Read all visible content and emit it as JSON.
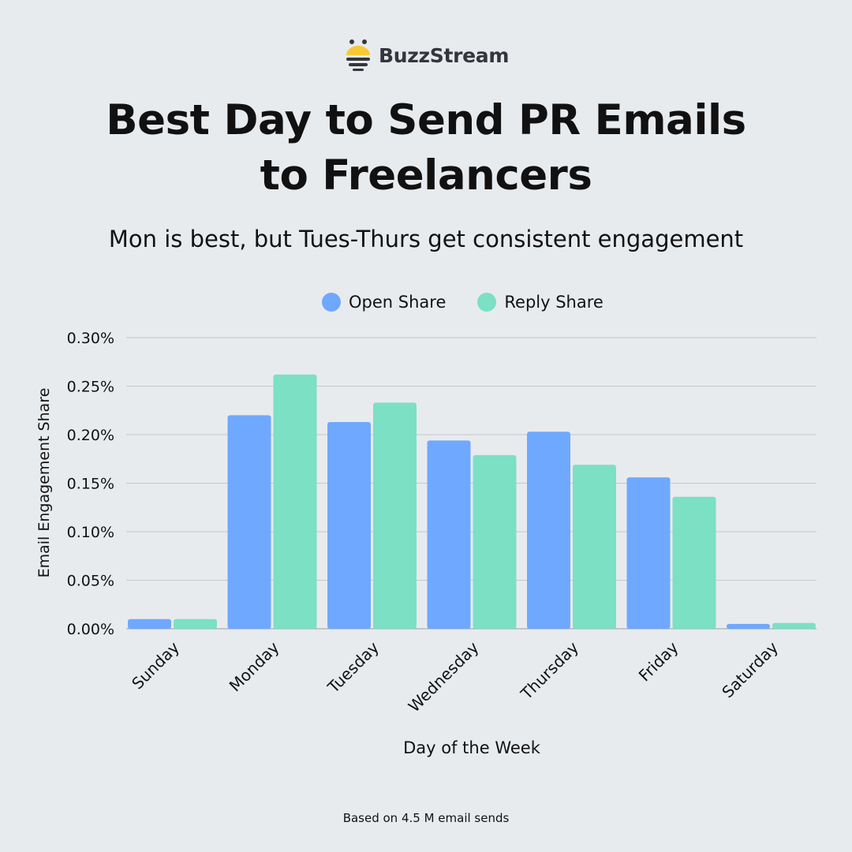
{
  "brand": {
    "name": "BuzzStream"
  },
  "header": {
    "title_line1": "Best Day to Send PR Emails",
    "title_line2": "to Freelancers",
    "subtitle": "Mon is best, but Tues-Thurs get consistent engagement"
  },
  "footer": {
    "note": "Based on 4.5 M email sends"
  },
  "colors": {
    "open": "#6fa8ff",
    "reply": "#7be0c4",
    "background": "#e8ebee",
    "grid": "#c4c7cb",
    "logo_yellow": "#f7c936",
    "logo_dark": "#33363b"
  },
  "chart_data": {
    "type": "bar",
    "title": "",
    "xlabel": "Day of the Week",
    "ylabel": "Email Engagement Share",
    "ylim": [
      0,
      0.3
    ],
    "yticks": [
      "0.00%",
      "0.05%",
      "0.10%",
      "0.15%",
      "0.20%",
      "0.25%",
      "0.30%"
    ],
    "grid": true,
    "legend_position": "top",
    "categories": [
      "Sunday",
      "Monday",
      "Tuesday",
      "Wednesday",
      "Thursday",
      "Friday",
      "Saturday"
    ],
    "series": [
      {
        "name": "Open Share",
        "values": [
          0.01,
          0.22,
          0.213,
          0.194,
          0.203,
          0.156,
          0.005
        ]
      },
      {
        "name": "Reply Share",
        "values": [
          0.01,
          0.262,
          0.233,
          0.179,
          0.169,
          0.136,
          0.006
        ]
      }
    ]
  }
}
